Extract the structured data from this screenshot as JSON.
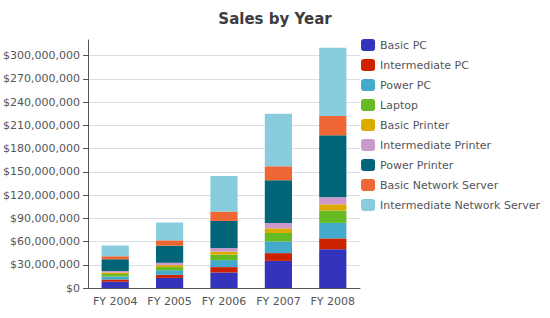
{
  "chart_data": {
    "type": "bar",
    "title": "Sales by Year",
    "stacked": true,
    "categories": [
      "FY 2004",
      "FY 2005",
      "FY 2006",
      "FY 2007",
      "FY 2008"
    ],
    "series": [
      {
        "name": "Basic PC",
        "color": "#3333BB",
        "values": [
          8000000,
          13000000,
          20000000,
          35000000,
          50000000
        ]
      },
      {
        "name": "Intermediate PC",
        "color": "#CC2200",
        "values": [
          3000000,
          4000000,
          7000000,
          10000000,
          14000000
        ]
      },
      {
        "name": "Power PC",
        "color": "#44AACC",
        "values": [
          4000000,
          6000000,
          9000000,
          15000000,
          20000000
        ]
      },
      {
        "name": "Laptop",
        "color": "#66BB22",
        "values": [
          3000000,
          4000000,
          7000000,
          11000000,
          16000000
        ]
      },
      {
        "name": "Basic Printer",
        "color": "#DDAA00",
        "values": [
          2000000,
          2500000,
          4000000,
          6000000,
          8000000
        ]
      },
      {
        "name": "Intermediate Printer",
        "color": "#CC99CC",
        "values": [
          2000000,
          3000000,
          4500000,
          7000000,
          9000000
        ]
      },
      {
        "name": "Power Printer",
        "color": "#006677",
        "values": [
          15000000,
          22000000,
          35000000,
          55000000,
          80000000
        ]
      },
      {
        "name": "Basic Network Server",
        "color": "#EE6633",
        "values": [
          4000000,
          7000000,
          12000000,
          18000000,
          25000000
        ]
      },
      {
        "name": "Intermediate Network Server",
        "color": "#88CCDD",
        "values": [
          14000000,
          23000000,
          46000000,
          68000000,
          88000000
        ]
      }
    ],
    "ylim": [
      0,
      320000000
    ],
    "yticks": [
      {
        "value": 0,
        "label": "$0"
      },
      {
        "value": 30000000,
        "label": "$30,000,000"
      },
      {
        "value": 60000000,
        "label": "$60,000,000"
      },
      {
        "value": 90000000,
        "label": "$90,000,000"
      },
      {
        "value": 120000000,
        "label": "$120,000,000"
      },
      {
        "value": 150000000,
        "label": "$150,000,000"
      },
      {
        "value": 180000000,
        "label": "$180,000,000"
      },
      {
        "value": 210000000,
        "label": "$210,000,000"
      },
      {
        "value": 240000000,
        "label": "$240,000,000"
      },
      {
        "value": 270000000,
        "label": "$270,000,000"
      },
      {
        "value": 300000000,
        "label": "$300,000,000"
      }
    ],
    "grid": true,
    "legend": "upper right"
  }
}
